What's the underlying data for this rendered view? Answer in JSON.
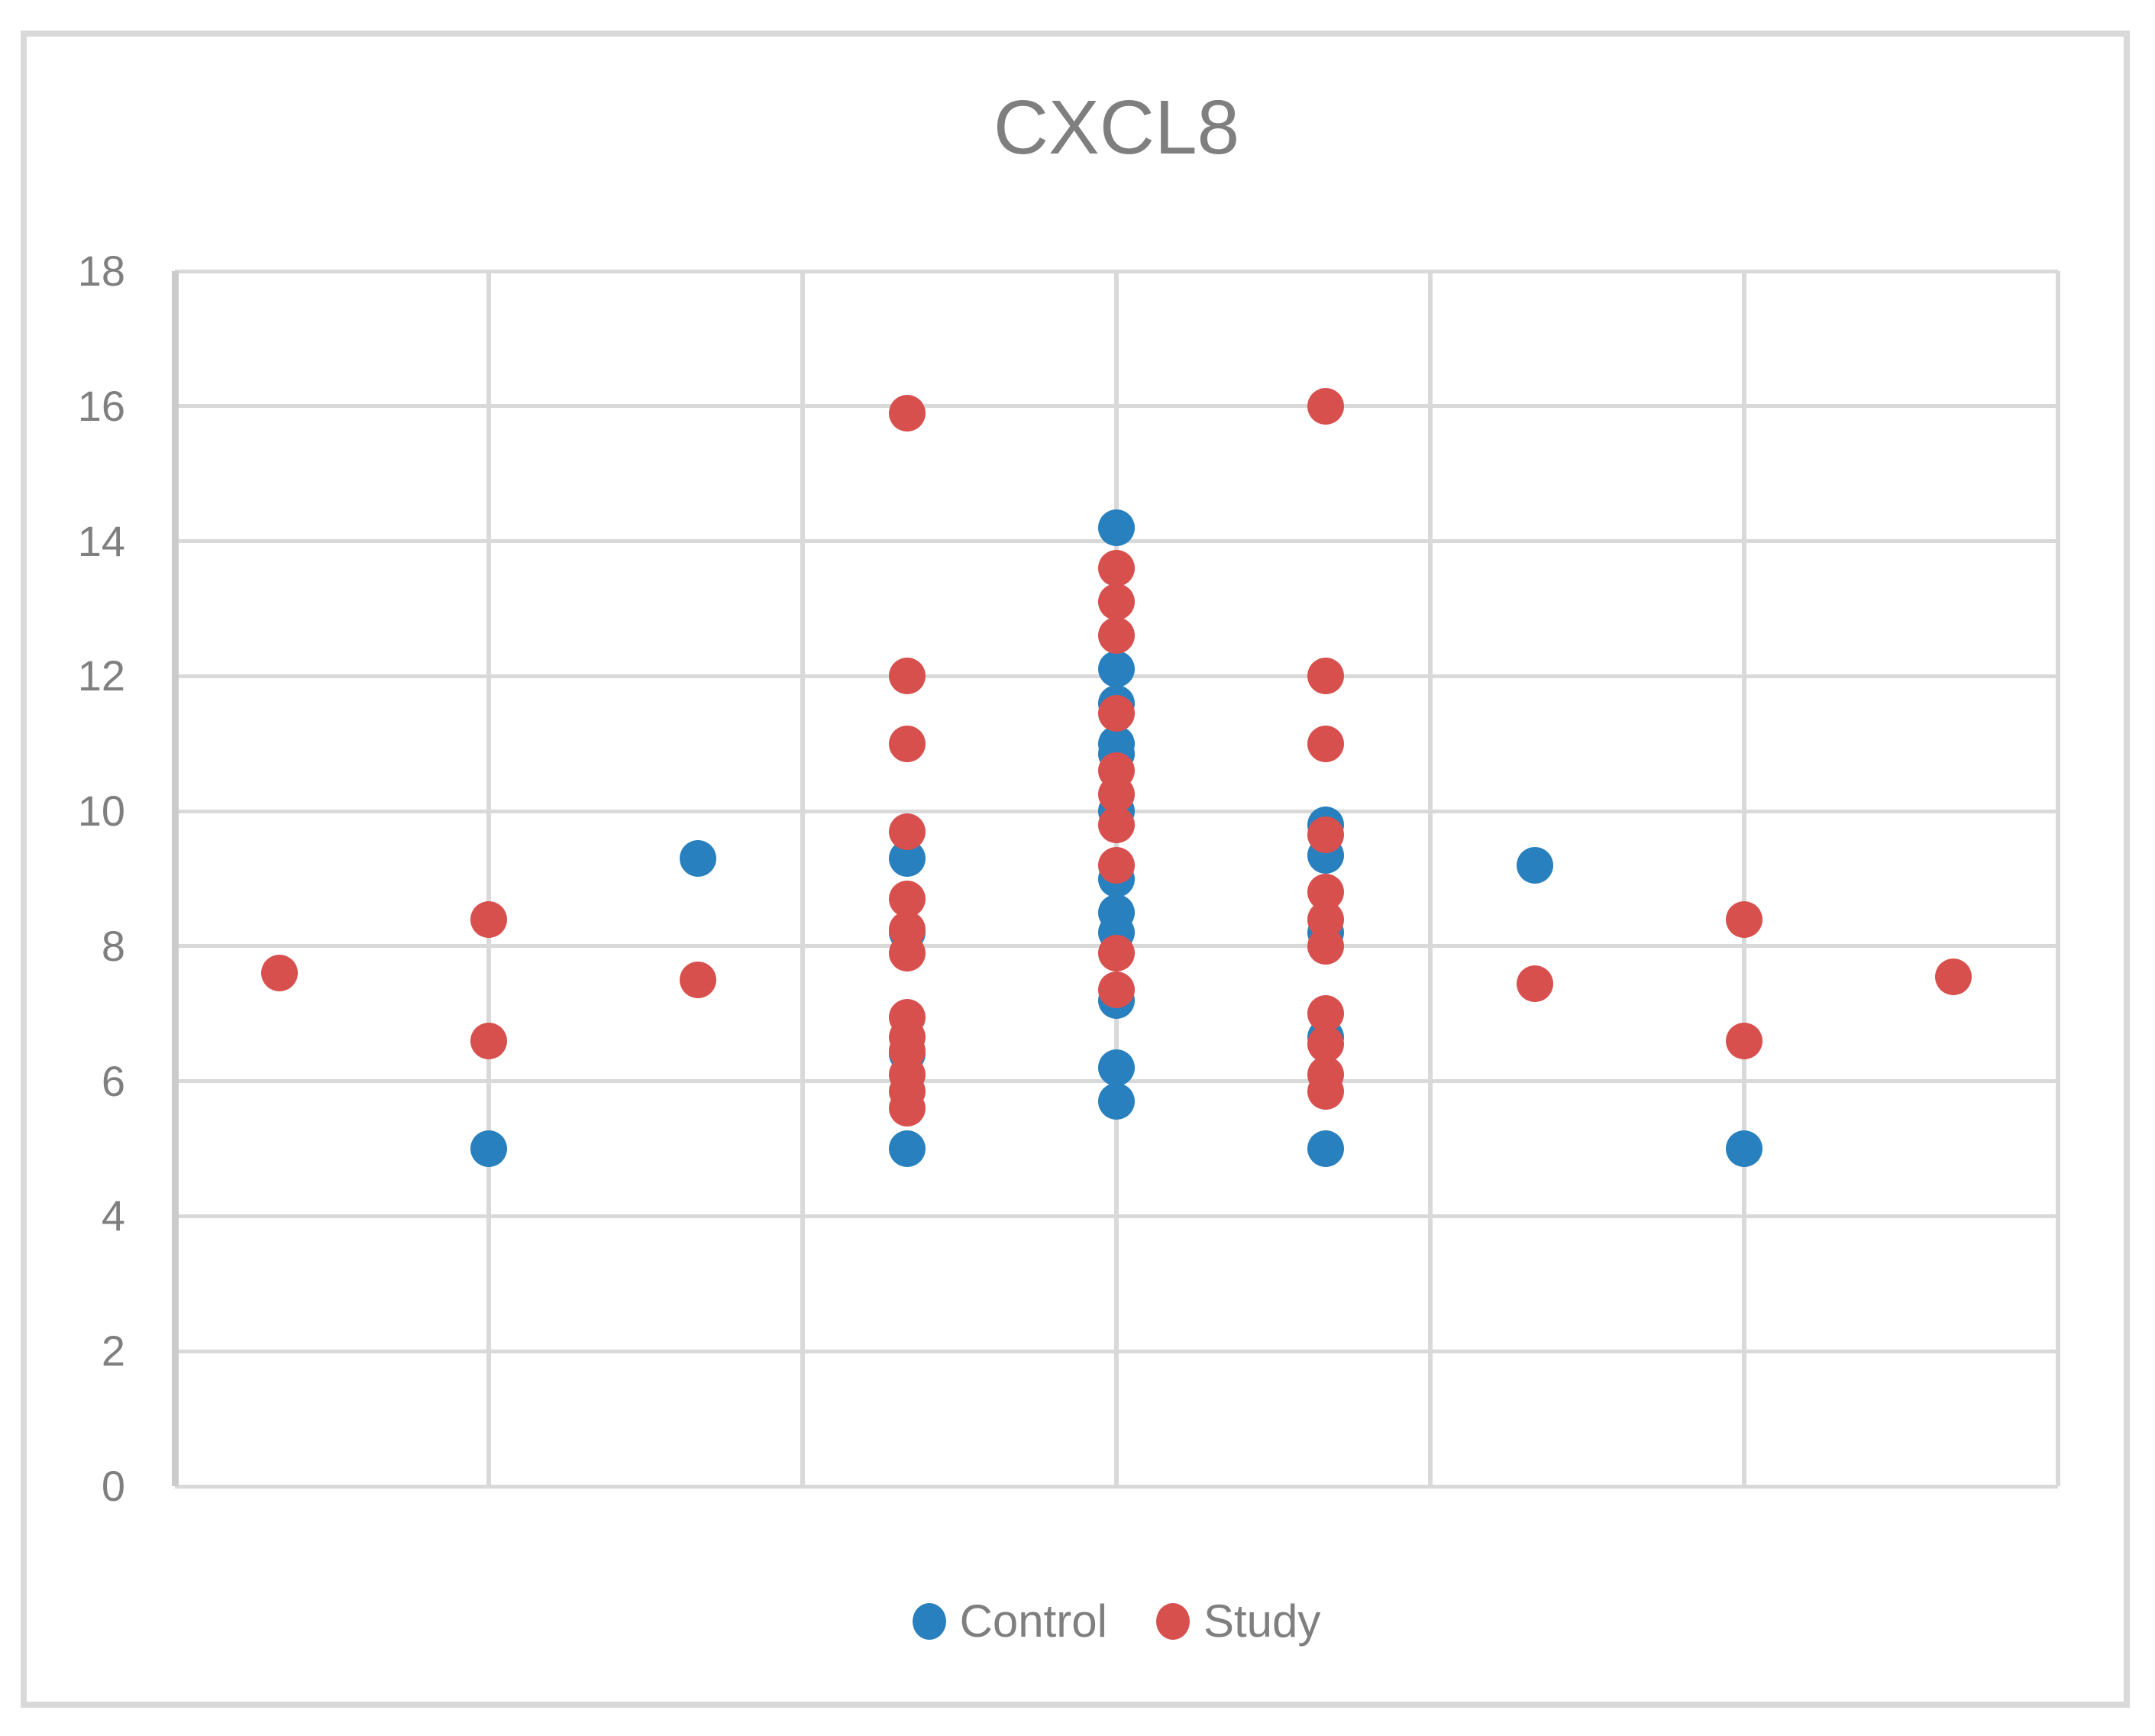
{
  "frame": {
    "background_color": "#FFFFFF",
    "border_color": "#D9D9D9"
  },
  "chart_data": {
    "type": "scatter",
    "title": "CXCL8",
    "title_color": "#7F7F7F",
    "axis_label_color": "#7F7F7F",
    "gridline_color": "#D9D9D9",
    "axis_line_color": "#CBCBCB",
    "grid": true,
    "legend_position": "bottom",
    "x_range": [
      0,
      9
    ],
    "y_range": [
      0,
      18
    ],
    "y_ticks": [
      0,
      2,
      4,
      6,
      8,
      10,
      12,
      14,
      16,
      18
    ],
    "x_gridline_step": 1.5,
    "x_axis_labels": [],
    "series": [
      {
        "name": "Control",
        "color": "#2980BE",
        "points": [
          [
            1.5,
            5.0
          ],
          [
            2.5,
            9.3
          ],
          [
            3.5,
            9.3
          ],
          [
            3.5,
            8.2
          ],
          [
            3.5,
            6.4
          ],
          [
            3.5,
            5.0
          ],
          [
            4.5,
            14.2
          ],
          [
            4.5,
            12.1
          ],
          [
            4.5,
            11.6
          ],
          [
            4.5,
            11.0
          ],
          [
            4.5,
            10.85
          ],
          [
            4.5,
            10.0
          ],
          [
            4.5,
            9.0
          ],
          [
            4.5,
            8.5
          ],
          [
            4.5,
            8.2
          ],
          [
            4.5,
            7.2
          ],
          [
            4.5,
            6.2
          ],
          [
            4.5,
            5.7
          ],
          [
            5.5,
            9.8
          ],
          [
            5.5,
            9.35
          ],
          [
            5.5,
            8.2
          ],
          [
            5.5,
            6.65
          ],
          [
            5.5,
            5.0
          ],
          [
            6.5,
            9.2
          ],
          [
            7.5,
            5.0
          ]
        ]
      },
      {
        "name": "Study",
        "color": "#D8504E",
        "points": [
          [
            0.5,
            7.6
          ],
          [
            1.5,
            8.4
          ],
          [
            1.5,
            6.6
          ],
          [
            2.5,
            7.5
          ],
          [
            3.5,
            15.9
          ],
          [
            3.5,
            12.0
          ],
          [
            3.5,
            11.0
          ],
          [
            3.5,
            9.7
          ],
          [
            3.5,
            8.7
          ],
          [
            3.5,
            8.25
          ],
          [
            3.5,
            7.9
          ],
          [
            3.5,
            6.95
          ],
          [
            3.5,
            6.65
          ],
          [
            3.5,
            6.45
          ],
          [
            3.5,
            6.1
          ],
          [
            3.5,
            5.85
          ],
          [
            3.5,
            5.6
          ],
          [
            4.5,
            13.6
          ],
          [
            4.5,
            13.1
          ],
          [
            4.5,
            12.6
          ],
          [
            4.5,
            11.45
          ],
          [
            4.5,
            10.6
          ],
          [
            4.5,
            10.25
          ],
          [
            4.5,
            9.8
          ],
          [
            4.5,
            9.2
          ],
          [
            4.5,
            7.9
          ],
          [
            4.5,
            7.35
          ],
          [
            5.5,
            16.0
          ],
          [
            5.5,
            12.0
          ],
          [
            5.5,
            11.0
          ],
          [
            5.5,
            9.65
          ],
          [
            5.5,
            8.8
          ],
          [
            5.5,
            8.4
          ],
          [
            5.5,
            8.0
          ],
          [
            5.5,
            7.0
          ],
          [
            5.5,
            6.55
          ],
          [
            5.5,
            6.1
          ],
          [
            5.5,
            5.85
          ],
          [
            6.5,
            7.45
          ],
          [
            7.5,
            8.4
          ],
          [
            7.5,
            6.6
          ],
          [
            8.5,
            7.55
          ]
        ]
      }
    ]
  }
}
